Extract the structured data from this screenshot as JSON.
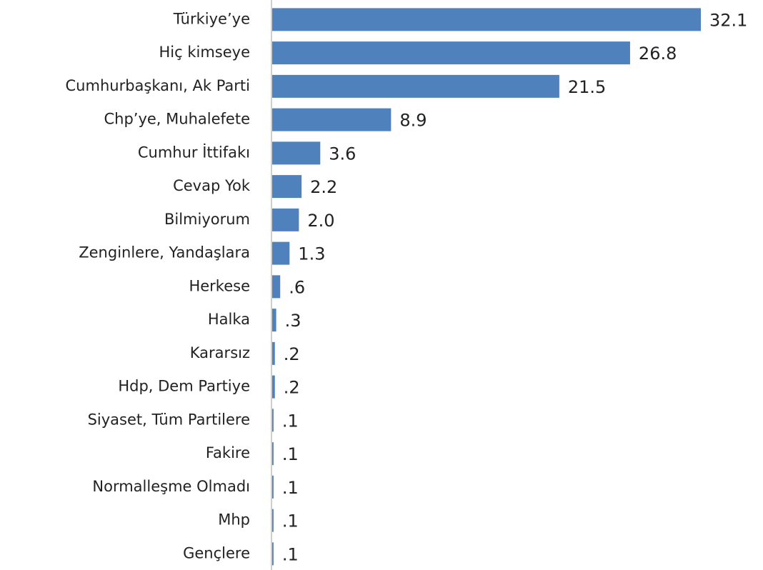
{
  "chart_data": {
    "type": "hbar",
    "categories": [
      "Türkiye’ye",
      "Hiç kimseye",
      "Cumhurbaşkanı, Ak Parti",
      "Chp’ye, Muhalefete",
      "Cumhur İttifakı",
      "Cevap Yok",
      "Bilmiyorum",
      "Zenginlere, Yandaşlara",
      "Herkese",
      "Halka",
      "Kararsız",
      "Hdp, Dem Partiye",
      "Siyaset, Tüm Partilere",
      "Fakire",
      "Normalleşme Olmadı",
      "Mhp",
      "Gençlere"
    ],
    "values": [
      32.1,
      26.8,
      21.5,
      8.9,
      3.6,
      2.2,
      2.0,
      1.3,
      0.6,
      0.3,
      0.2,
      0.2,
      0.1,
      0.1,
      0.1,
      0.1,
      0.1
    ],
    "value_labels": [
      "32.1",
      "26.8",
      "21.5",
      "8.9",
      "3.6",
      "2.2",
      "2.0",
      "1.3",
      ".6",
      ".3",
      ".2",
      ".2",
      ".1",
      ".1",
      ".1",
      ".1",
      ".1"
    ],
    "color": "#4f81bd"
  }
}
